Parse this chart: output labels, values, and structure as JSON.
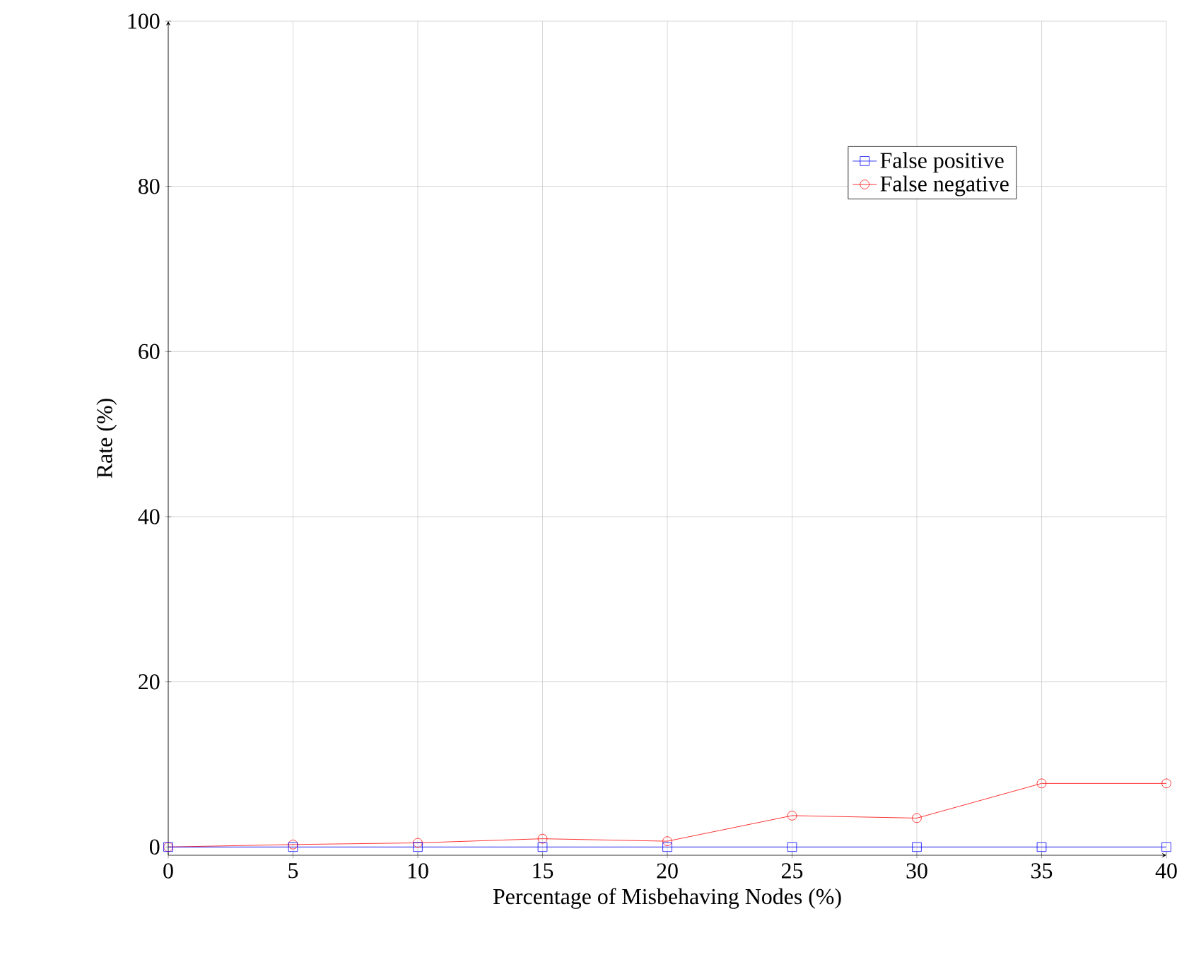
{
  "chart_data": {
    "type": "line",
    "xlabel": "Percentage of Misbehaving Nodes (%)",
    "ylabel": "Rate (%)",
    "x": [
      0,
      5,
      10,
      15,
      20,
      25,
      30,
      35,
      40
    ],
    "series": [
      {
        "name": "False positive",
        "color": "#0000ff",
        "marker": "square",
        "values": [
          0,
          0,
          0,
          0,
          0,
          0,
          0,
          0,
          0
        ]
      },
      {
        "name": "False negative",
        "color": "#ff0000",
        "marker": "circle",
        "values": [
          0,
          0.3,
          0.5,
          1.0,
          0.7,
          3.8,
          3.5,
          7.7,
          7.7
        ]
      }
    ],
    "xlim": [
      0,
      40
    ],
    "ylim": [
      -1,
      100
    ],
    "xticks": [
      0,
      5,
      10,
      15,
      20,
      25,
      30,
      35,
      40
    ],
    "yticks": [
      0,
      20,
      40,
      60,
      80,
      100
    ],
    "grid": true,
    "legend": "top right",
    "line_style": "solid"
  }
}
